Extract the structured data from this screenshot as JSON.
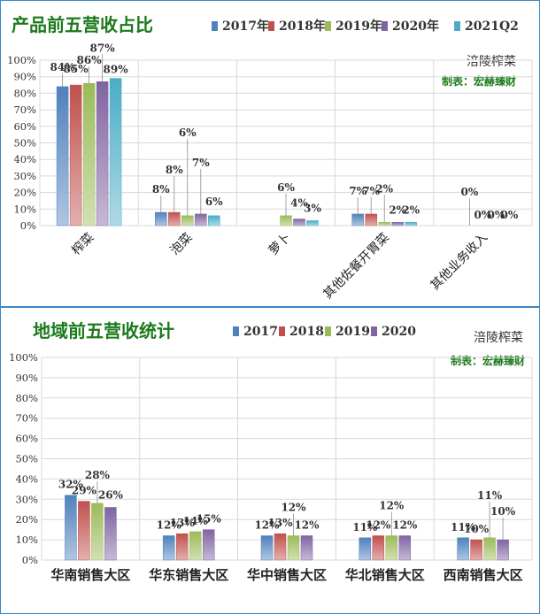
{
  "chart_data": [
    {
      "type": "bar",
      "title": "产品前五营收占比",
      "company": "涪陵榨菜",
      "author": "制表：宏赫臻财",
      "categories": [
        "榨菜",
        "泡菜",
        "萝卜",
        "其他佐餐开胃菜",
        "其他业务收入"
      ],
      "series": [
        {
          "name": "2017年",
          "values": [
            84,
            8,
            0,
            7,
            0
          ]
        },
        {
          "name": "2018年",
          "values": [
            85,
            8,
            0,
            7,
            0
          ]
        },
        {
          "name": "2019年",
          "values": [
            86,
            6,
            6,
            2,
            0
          ]
        },
        {
          "name": "2020年",
          "values": [
            87,
            7,
            4,
            2,
            0
          ]
        },
        {
          "name": "2021Q2",
          "values": [
            89,
            6,
            3,
            2,
            0
          ]
        }
      ],
      "data_labels": [
        [
          "84%",
          "85%",
          "86%",
          "87%",
          "89%"
        ],
        [
          "8%",
          "8%",
          "6%",
          "7%",
          "6%"
        ],
        [
          "",
          "",
          "6%",
          "4%",
          "3%"
        ],
        [
          "7%",
          "7%",
          "2%",
          "2%",
          "2%"
        ],
        [
          "",
          "0%",
          "0%",
          "0%",
          "0%"
        ]
      ],
      "ylim": [
        0,
        100
      ],
      "yticks": [
        "0%",
        "10%",
        "20%",
        "30%",
        "40%",
        "50%",
        "60%",
        "70%",
        "80%",
        "90%",
        "100%"
      ],
      "grid": true,
      "legend": "top-right"
    },
    {
      "type": "bar",
      "title": "地域前五营收统计",
      "company": "涪陵榨菜",
      "author": "制表：宏赫臻财",
      "categories": [
        "华南销售大区",
        "华东销售大区",
        "华中销售大区",
        "华北销售大区",
        "西南销售大区"
      ],
      "series": [
        {
          "name": "2017",
          "values": [
            32,
            12,
            12,
            11,
            11
          ]
        },
        {
          "name": "2018",
          "values": [
            29,
            13,
            13,
            12,
            10
          ]
        },
        {
          "name": "2019",
          "values": [
            28,
            14,
            12,
            12,
            11
          ]
        },
        {
          "name": "2020",
          "values": [
            26,
            15,
            12,
            12,
            10
          ]
        }
      ],
      "data_labels": [
        [
          "32%",
          "29%",
          "28%",
          "26%"
        ],
        [
          "12%",
          "13%",
          "14%",
          "15%"
        ],
        [
          "12%",
          "13%",
          "12%",
          "12%"
        ],
        [
          "11%",
          "12%",
          "12%",
          "12%"
        ],
        [
          "11%",
          "10%",
          "11%",
          "10%"
        ]
      ],
      "ylim": [
        0,
        100
      ],
      "yticks": [
        "0%",
        "10%",
        "20%",
        "30%",
        "40%",
        "50%",
        "60%",
        "70%",
        "80%",
        "90%",
        "100%"
      ],
      "grid": true,
      "legend": "top-right"
    }
  ],
  "colors": {
    "series": [
      "#4f81bd",
      "#c0504d",
      "#9bbb59",
      "#8064a2",
      "#4bacc6"
    ],
    "title": "#1a7a1a",
    "border": "#3a86c8"
  }
}
